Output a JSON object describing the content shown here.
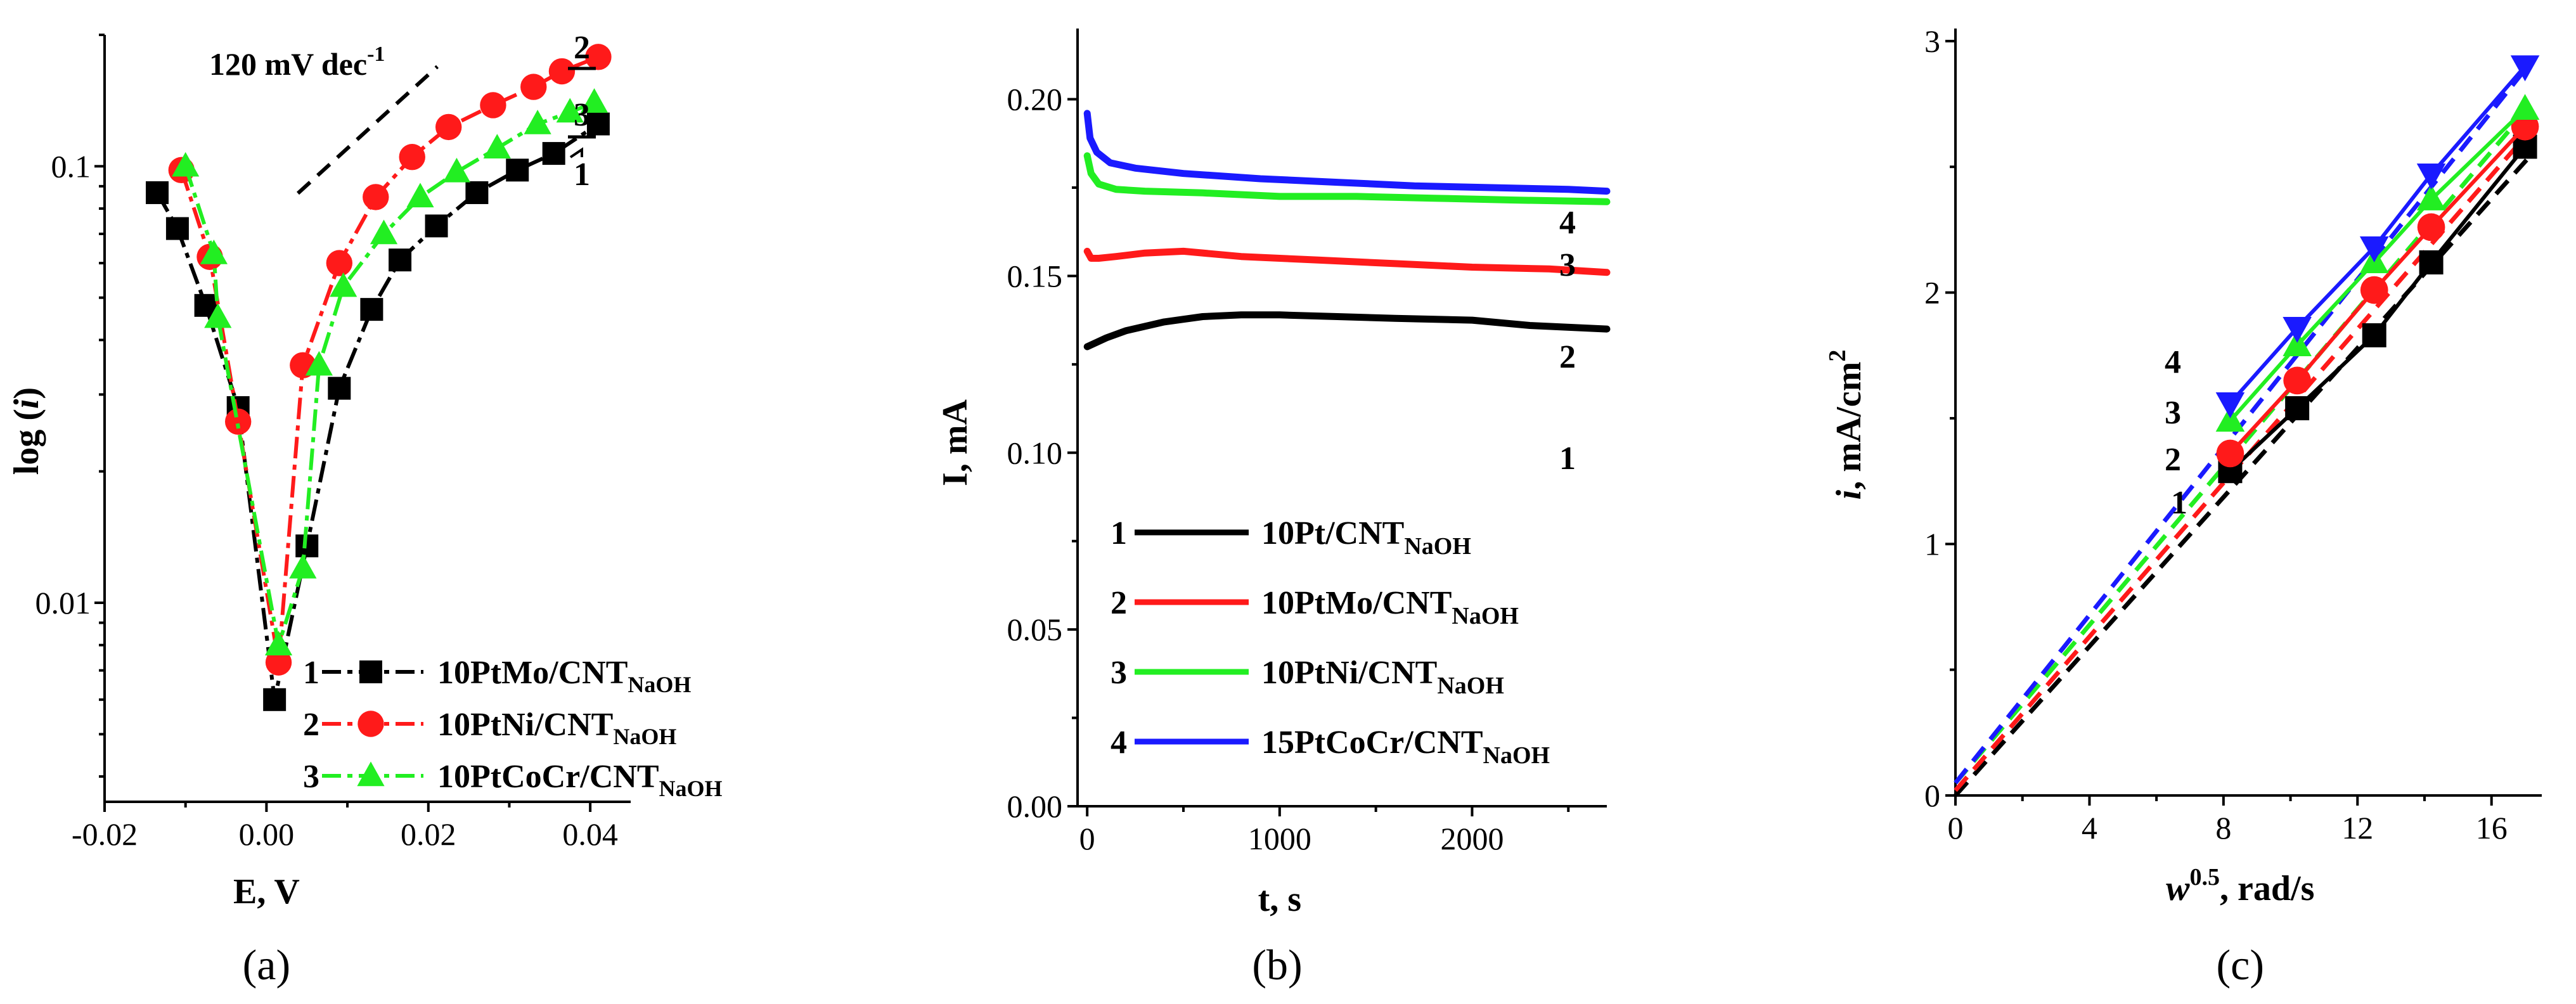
{
  "colors": {
    "s1": "#000000",
    "s2": "#ff1a1a",
    "s3": "#22ee22",
    "s4": "#1a1aff"
  },
  "chart_data": [
    {
      "type": "line",
      "panel": "(a)",
      "xlabel": "E, V",
      "ylabel": "log (i)",
      "xlim": [
        -0.02,
        0.045
      ],
      "ylog": true,
      "ylim": [
        0.0035,
        0.2
      ],
      "xticks": [
        {
          "v": -0.02,
          "label": "-0.02"
        },
        {
          "v": 0.0,
          "label": "0.00"
        },
        {
          "v": 0.02,
          "label": "0.02"
        },
        {
          "v": 0.04,
          "label": "0.04"
        }
      ],
      "yticks": [
        {
          "v": 0.1,
          "label": "0.1"
        },
        {
          "v": 0.01,
          "label": "0.01"
        }
      ],
      "annotation": {
        "text": "120 mV dec",
        "sup": "-1"
      },
      "legend_position": "bottom-right",
      "series": [
        {
          "num": "1",
          "name": "10PtMo/CNT",
          "sub": "NaOH",
          "marker": "square",
          "x": [
            -0.0135,
            -0.011,
            -0.0075,
            -0.0035,
            0.001,
            0.005,
            0.009,
            0.013,
            0.0165,
            0.021,
            0.026,
            0.031,
            0.0355,
            0.041
          ],
          "y": [
            0.087,
            0.072,
            0.048,
            0.028,
            0.006,
            0.0135,
            0.031,
            0.047,
            0.061,
            0.073,
            0.087,
            0.098,
            0.107,
            0.125
          ]
        },
        {
          "num": "2",
          "name": "10PtNi/CNT",
          "sub": "NaOH",
          "marker": "circle",
          "x": [
            -0.0105,
            -0.007,
            -0.0035,
            0.0015,
            0.0045,
            0.009,
            0.0135,
            0.018,
            0.0225,
            0.028,
            0.033,
            0.0365,
            0.041
          ],
          "y": [
            0.098,
            0.062,
            0.026,
            0.0073,
            0.035,
            0.06,
            0.085,
            0.105,
            0.123,
            0.138,
            0.152,
            0.165,
            0.178
          ]
        },
        {
          "num": "3",
          "name": "10PtCoCr/CNT",
          "sub": "NaOH",
          "marker": "triangle",
          "x": [
            -0.01,
            -0.0065,
            -0.006,
            0.0015,
            0.0045,
            0.0065,
            0.0095,
            0.0145,
            0.019,
            0.0235,
            0.0285,
            0.0335,
            0.0375,
            0.0405
          ],
          "y": [
            0.1,
            0.063,
            0.045,
            0.008,
            0.012,
            0.035,
            0.053,
            0.07,
            0.085,
            0.097,
            0.11,
            0.125,
            0.133,
            0.14
          ]
        }
      ],
      "curve_labels": [
        "2",
        "3",
        "1"
      ]
    },
    {
      "type": "line",
      "panel": "(b)",
      "xlabel": "t, s",
      "ylabel": "I, mA",
      "xlim": [
        -50,
        2700
      ],
      "ylim": [
        0.0,
        0.22
      ],
      "xticks": [
        {
          "v": 0,
          "label": "0"
        },
        {
          "v": 1000,
          "label": "1000"
        },
        {
          "v": 2000,
          "label": "2000"
        }
      ],
      "yticks": [
        {
          "v": 0.0,
          "label": "0.00"
        },
        {
          "v": 0.05,
          "label": "0.05"
        },
        {
          "v": 0.1,
          "label": "0.10"
        },
        {
          "v": 0.15,
          "label": "0.15"
        },
        {
          "v": 0.2,
          "label": "0.20"
        }
      ],
      "legend_position": "bottom-right",
      "series": [
        {
          "num": "1",
          "name": "10Pt/CNT",
          "sub": "NaOH",
          "x": [
            0,
            100,
            200,
            400,
            600,
            800,
            1000,
            1300,
            1600,
            2000,
            2300,
            2700
          ],
          "y": [
            0.13,
            0.1325,
            0.1345,
            0.137,
            0.1385,
            0.139,
            0.139,
            0.1385,
            0.138,
            0.1375,
            0.136,
            0.135
          ]
        },
        {
          "num": "2",
          "name": "10PtMo/CNT",
          "sub": "NaOH",
          "x": [
            0,
            20,
            60,
            150,
            300,
            500,
            800,
            1200,
            1600,
            2000,
            2400,
            2700
          ],
          "y": [
            0.157,
            0.155,
            0.155,
            0.1555,
            0.1565,
            0.157,
            0.1555,
            0.1545,
            0.1535,
            0.1525,
            0.152,
            0.151
          ]
        },
        {
          "num": "3",
          "name": "10PtNi/CNT",
          "sub": "NaOH",
          "x": [
            0,
            20,
            60,
            150,
            300,
            600,
            1000,
            1400,
            1800,
            2200,
            2700
          ],
          "y": [
            0.184,
            0.179,
            0.176,
            0.1745,
            0.174,
            0.1735,
            0.1725,
            0.1725,
            0.172,
            0.1715,
            0.171
          ]
        },
        {
          "num": "4",
          "name": "15PtCoCr/CNT",
          "sub": "NaOH",
          "x": [
            0,
            15,
            50,
            120,
            250,
            500,
            900,
            1300,
            1700,
            2100,
            2500,
            2700
          ],
          "y": [
            0.196,
            0.189,
            0.185,
            0.182,
            0.1805,
            0.179,
            0.1775,
            0.1765,
            0.1755,
            0.175,
            0.1745,
            0.174
          ]
        }
      ],
      "curve_labels": [
        "4",
        "3",
        "2",
        "1"
      ]
    },
    {
      "type": "scatter",
      "panel": "(c)",
      "xlabel": "w",
      "xlabel_sup": "0.5",
      "xlabel_rest": ", rad/s",
      "ylabel": "i, mA/cm",
      "ylabel_sup": "2",
      "xlim": [
        0,
        17.5
      ],
      "ylim": [
        0,
        3.05
      ],
      "xticks": [
        {
          "v": 0,
          "label": "0"
        },
        {
          "v": 4,
          "label": "4"
        },
        {
          "v": 8,
          "label": "8"
        },
        {
          "v": 12,
          "label": "12"
        },
        {
          "v": 16,
          "label": "16"
        }
      ],
      "yticks": [
        {
          "v": 0,
          "label": "0"
        },
        {
          "v": 1,
          "label": "1"
        },
        {
          "v": 2,
          "label": "2"
        },
        {
          "v": 3,
          "label": "3"
        }
      ],
      "series": [
        {
          "num": "1",
          "marker": "square",
          "x": [
            8.2,
            10.2,
            12.5,
            14.2,
            17.0
          ],
          "y": [
            1.29,
            1.54,
            1.83,
            2.12,
            2.58
          ],
          "fit": [
            0.0,
            2.55
          ]
        },
        {
          "num": "2",
          "marker": "circle",
          "x": [
            8.2,
            10.2,
            12.5,
            14.2,
            17.0
          ],
          "y": [
            1.36,
            1.65,
            2.01,
            2.26,
            2.66
          ],
          "fit": [
            0.02,
            2.65
          ]
        },
        {
          "num": "3",
          "marker": "triangle",
          "x": [
            8.2,
            10.2,
            12.5,
            14.2,
            17.0
          ],
          "y": [
            1.49,
            1.79,
            2.12,
            2.37,
            2.73
          ],
          "fit": [
            0.05,
            2.75
          ]
        },
        {
          "num": "4",
          "marker": "triangle-down",
          "x": [
            8.2,
            10.2,
            12.5,
            14.2,
            17.0
          ],
          "y": [
            1.56,
            1.86,
            2.18,
            2.47,
            2.9
          ],
          "fit": [
            0.05,
            2.92
          ]
        }
      ],
      "curve_labels": [
        "4",
        "3",
        "2",
        "1"
      ]
    }
  ]
}
